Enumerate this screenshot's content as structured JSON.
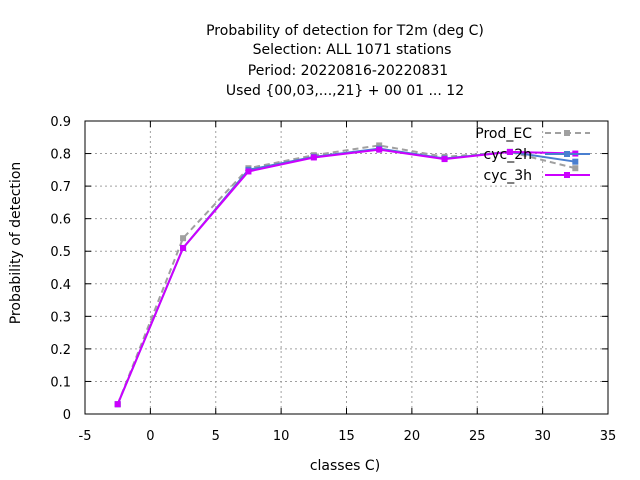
{
  "chart_data": {
    "type": "line",
    "title_lines": [
      "Probability of detection  for T2m (deg C)",
      "Selection: ALL    1071 stations",
      "Period: 20220816-20220831",
      "Used {00,03,...,21} + 00 01 ... 12"
    ],
    "xlabel": "classes C)",
    "ylabel": "Probability of detection",
    "xlim": [
      -5,
      35
    ],
    "ylim": [
      0,
      0.9
    ],
    "x_ticks": [
      -5,
      0,
      5,
      10,
      15,
      20,
      25,
      30,
      35
    ],
    "y_ticks": [
      0,
      0.1,
      0.2,
      0.3,
      0.4,
      0.5,
      0.6,
      0.7,
      0.8,
      0.9
    ],
    "x_tick_labels": [
      "-5",
      "0",
      "5",
      "10",
      "15",
      "20",
      "25",
      "30",
      "35"
    ],
    "y_tick_labels": [
      "0",
      "0.1",
      "0.2",
      "0.3",
      "0.4",
      "0.5",
      "0.6",
      "0.7",
      "0.8",
      "0.9"
    ],
    "grid": true,
    "legend_position": "top-right",
    "series": [
      {
        "name": "Prod_EC",
        "color": "#a0a0a0",
        "dash": true,
        "x": [
          -2.5,
          2.5,
          7.5,
          12.5,
          17.5,
          22.5,
          27.5,
          32.5
        ],
        "y": [
          0.03,
          0.54,
          0.755,
          0.795,
          0.825,
          0.79,
          0.805,
          0.755
        ]
      },
      {
        "name": "cyc_2h",
        "color": "#4a7fd0",
        "dash": false,
        "x": [
          -2.5,
          2.5,
          7.5,
          12.5,
          17.5,
          22.5,
          27.5,
          32.5
        ],
        "y": [
          0.03,
          0.51,
          0.75,
          0.79,
          0.815,
          0.785,
          0.805,
          0.775
        ]
      },
      {
        "name": "cyc_3h",
        "color": "#cc00ff",
        "dash": false,
        "x": [
          -2.5,
          2.5,
          7.5,
          12.5,
          17.5,
          22.5,
          27.5,
          32.5
        ],
        "y": [
          0.03,
          0.51,
          0.745,
          0.788,
          0.812,
          0.783,
          0.805,
          0.8
        ]
      }
    ]
  }
}
